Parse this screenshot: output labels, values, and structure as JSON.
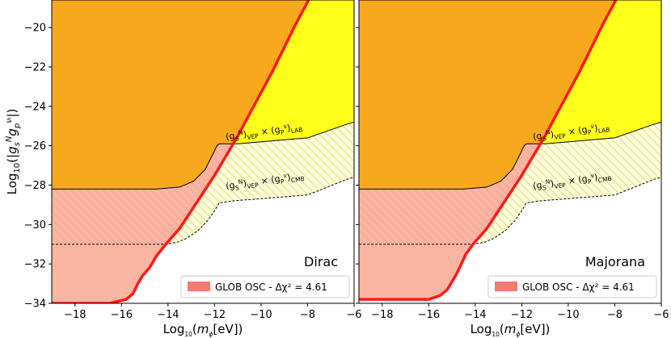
{
  "figure": {
    "xlabel": "Log$_{10}$($m_\\phi$[eV])",
    "ylabel": "Log$_{10}$(|$g_s^N g_p^{\\nu_l}$|)",
    "colors": {
      "orange": "#f8a81d",
      "yellow": "#ffff1a",
      "hatch": "#d8d835",
      "pink": "#f9b4a2",
      "pinkHatch": "#f5a48c",
      "red": "#ff1a1a",
      "legendPatch": "#f47a6f"
    }
  },
  "chart_data": [
    {
      "type": "area",
      "panel": "Dirac",
      "xlim": [
        -19,
        -6
      ],
      "ylim": [
        -34,
        -18.6
      ],
      "xticks": [
        -18,
        -16,
        -14,
        -12,
        -10,
        -8,
        -6
      ],
      "yticks": [
        -20,
        -22,
        -24,
        -26,
        -28,
        -30,
        -32,
        -34
      ],
      "annotations": {
        "lab": "(g$_S^N$)$_{VEP}$ × (g$_P^\\nu$)$_{LAB}$",
        "cmb": "(g$_S^N$)$_{VEP}$ × (g$_P^\\nu$)$_{CMB}$"
      },
      "legend": {
        "label": "GLOB OSC - Δχ² = 4.61",
        "loc": "lower-right"
      },
      "lab_curve": {
        "x": [
          -19,
          -14.5,
          -13.5,
          -12.9,
          -12.4,
          -12.1,
          -11.9,
          -11.8,
          -11.0,
          -8.0,
          -6.3,
          -6.0
        ],
        "y": [
          -28.2,
          -28.2,
          -28.1,
          -27.8,
          -27.2,
          -26.5,
          -26.0,
          -25.9,
          -25.9,
          -25.6,
          -24.9,
          -24.8
        ]
      },
      "cmb_curve": {
        "x": [
          -19,
          -14.1,
          -13.6,
          -13.2,
          -12.7,
          -12.3,
          -12.0,
          -11.9,
          -11.8,
          -11.2,
          -8.0,
          -6.3,
          -6.0
        ],
        "y": [
          -31.0,
          -31.0,
          -30.9,
          -30.7,
          -30.3,
          -29.8,
          -29.3,
          -29.1,
          -28.9,
          -28.8,
          -28.5,
          -27.7,
          -27.6
        ]
      },
      "osc_curve": {
        "x": [
          -19,
          -16.5,
          -15.8,
          -15.5,
          -15.3,
          -15.1,
          -14.8,
          -14.5,
          -14.1,
          -13.5,
          -13.0,
          -12.5,
          -12.0,
          -11.5,
          -11.0,
          -10.5,
          -10.0,
          -9.5,
          -9.0,
          -8.5,
          -8.0,
          -7.7
        ],
        "y": [
          -34.0,
          -34.0,
          -33.8,
          -33.5,
          -33.0,
          -32.6,
          -32.2,
          -31.6,
          -31.0,
          -30.2,
          -29.3,
          -28.4,
          -27.5,
          -26.5,
          -25.5,
          -24.4,
          -23.3,
          -22.2,
          -21.0,
          -19.8,
          -18.7,
          -18.0
        ]
      }
    },
    {
      "type": "area",
      "panel": "Majorana",
      "xlim": [
        -19,
        -6
      ],
      "ylim": [
        -34,
        -18.6
      ],
      "xticks": [
        -18,
        -16,
        -14,
        -12,
        -10,
        -8,
        -6
      ],
      "yticks": [
        -20,
        -22,
        -24,
        -26,
        -28,
        -30,
        -32,
        -34
      ],
      "annotations": {
        "lab": "(g$_S^N$)$_{VEP}$ × (g$_P^\\nu$)$_{LAB}$",
        "cmb": "(g$_S^N$)$_{VEP}$ × (g$_P^\\nu$)$_{CMB}$"
      },
      "legend": {
        "label": "GLOB OSC - Δχ² = 4.61",
        "loc": "lower-right"
      },
      "lab_curve": {
        "x": [
          -19,
          -14.5,
          -13.5,
          -12.9,
          -12.4,
          -12.1,
          -11.9,
          -11.8,
          -11.0,
          -8.0,
          -6.3,
          -6.0
        ],
        "y": [
          -28.2,
          -28.2,
          -28.1,
          -27.8,
          -27.2,
          -26.5,
          -26.0,
          -25.9,
          -25.9,
          -25.6,
          -24.9,
          -24.8
        ]
      },
      "cmb_curve": {
        "x": [
          -19,
          -14.1,
          -13.6,
          -13.2,
          -12.7,
          -12.3,
          -12.0,
          -11.9,
          -11.8,
          -11.2,
          -8.0,
          -6.3,
          -6.0
        ],
        "y": [
          -31.0,
          -31.0,
          -30.9,
          -30.7,
          -30.3,
          -29.8,
          -29.3,
          -29.1,
          -28.9,
          -28.8,
          -28.5,
          -27.7,
          -27.6
        ]
      },
      "osc_curve": {
        "x": [
          -19,
          -16.0,
          -15.5,
          -15.2,
          -15.0,
          -14.8,
          -14.6,
          -14.4,
          -14.1,
          -13.5,
          -13.0,
          -12.5,
          -12.0,
          -11.5,
          -11.0,
          -10.5,
          -10.0,
          -9.5,
          -9.0,
          -8.5,
          -8.0,
          -7.7
        ],
        "y": [
          -33.8,
          -33.8,
          -33.6,
          -33.3,
          -32.9,
          -32.5,
          -32.0,
          -31.5,
          -31.0,
          -30.2,
          -29.3,
          -28.4,
          -27.5,
          -26.5,
          -25.5,
          -24.4,
          -23.3,
          -22.2,
          -21.0,
          -19.8,
          -18.7,
          -18.0
        ]
      }
    }
  ]
}
